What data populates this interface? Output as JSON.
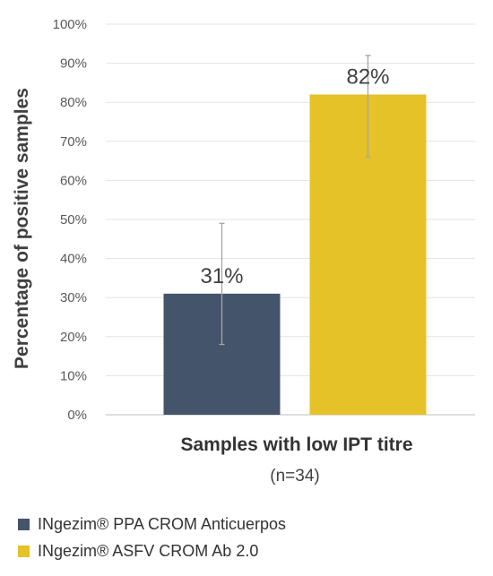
{
  "chart_data": {
    "type": "bar",
    "categories": [
      "Samples with low IPT titre"
    ],
    "x_sublabel": "(n=34)",
    "ylabel": "Percentage of positive samples",
    "xlabel": "Samples with low IPT titre",
    "ylim": [
      0,
      100
    ],
    "y_ticks": [
      "0%",
      "10%",
      "20%",
      "30%",
      "40%",
      "50%",
      "60%",
      "70%",
      "80%",
      "90%",
      "100%"
    ],
    "grid": true,
    "legend_position": "bottom-left",
    "series": [
      {
        "name": "INgezim® PPA CROM Anticuerpos",
        "values": [
          31
        ],
        "data_label": "31%",
        "error_low": 18,
        "error_high": 49,
        "color": "#44546a"
      },
      {
        "name": "INgezim® ASFV CROM Ab 2.0",
        "values": [
          82
        ],
        "data_label": "82%",
        "error_low": 66,
        "error_high": 92,
        "color": "#e4c228"
      }
    ]
  }
}
